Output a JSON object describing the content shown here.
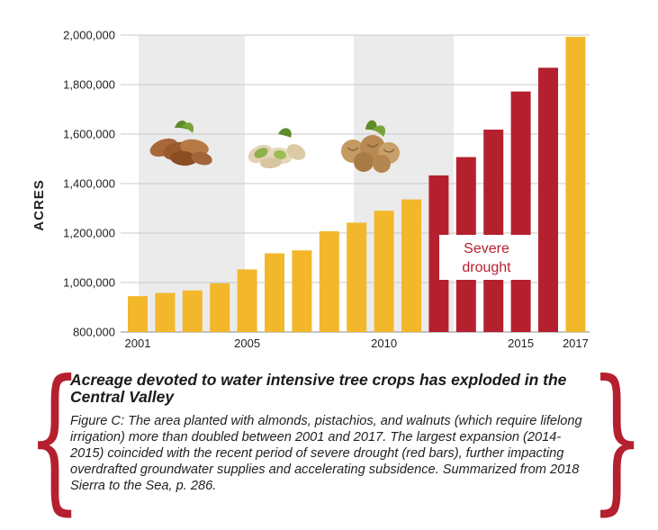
{
  "chart_data": {
    "type": "bar",
    "ylabel": "ACRES",
    "ylim": [
      800000,
      2000000
    ],
    "yticks": [
      "800,000",
      "1,000,000",
      "1,200,000",
      "1,400,000",
      "1,600,000",
      "1,800,000",
      "2,000,000"
    ],
    "ytick_values": [
      800000,
      1000000,
      1200000,
      1400000,
      1600000,
      1800000,
      2000000
    ],
    "xtick_labels": [
      "2001",
      "2005",
      "2010",
      "2015",
      "2017"
    ],
    "categories": [
      "2001",
      "2002",
      "2003",
      "2004",
      "2005",
      "2006",
      "2007",
      "2008",
      "2009",
      "2010",
      "2011",
      "2012",
      "2013",
      "2014",
      "2015",
      "2016",
      "2017"
    ],
    "values": [
      945000,
      958000,
      968000,
      997000,
      1053000,
      1118000,
      1130000,
      1207000,
      1242000,
      1290000,
      1336000,
      1433000,
      1507000,
      1618000,
      1772000,
      1868000,
      1993000
    ],
    "bar_colors": [
      "#f2b72a",
      "#f2b72a",
      "#f2b72a",
      "#f2b72a",
      "#f2b72a",
      "#f2b72a",
      "#f2b72a",
      "#f2b72a",
      "#f2b72a",
      "#f2b72a",
      "#f2b72a",
      "#b5202e",
      "#b5202e",
      "#b5202e",
      "#b5202e",
      "#b5202e",
      "#f2b72a"
    ],
    "annotation": "Severe drought",
    "annotation_lines": [
      "Severe",
      "drought"
    ],
    "grid": true,
    "colors": {
      "normal": "#f2b72a",
      "drought": "#b5202e",
      "band": "#ebebeb",
      "grid": "#c8c8c8"
    }
  },
  "caption": {
    "title": "Acreage devoted to water intensive tree crops has exploded in the Central Valley",
    "body": "Figure C: The area planted with almonds, pistachios, and walnuts (which require lifelong irrigation) more than doubled between 2001 and 2017. The largest expansion (2014-2015) coincided with the recent period of severe drought (red bars), further impacting overdrafted groundwater supplies and accelerating subsidence. Summarized from 2018 Sierra to the Sea, p. 286.",
    "brace_color": "#b5202e"
  },
  "illustrations": [
    "almonds-icon",
    "pistachios-icon",
    "walnuts-icon"
  ]
}
